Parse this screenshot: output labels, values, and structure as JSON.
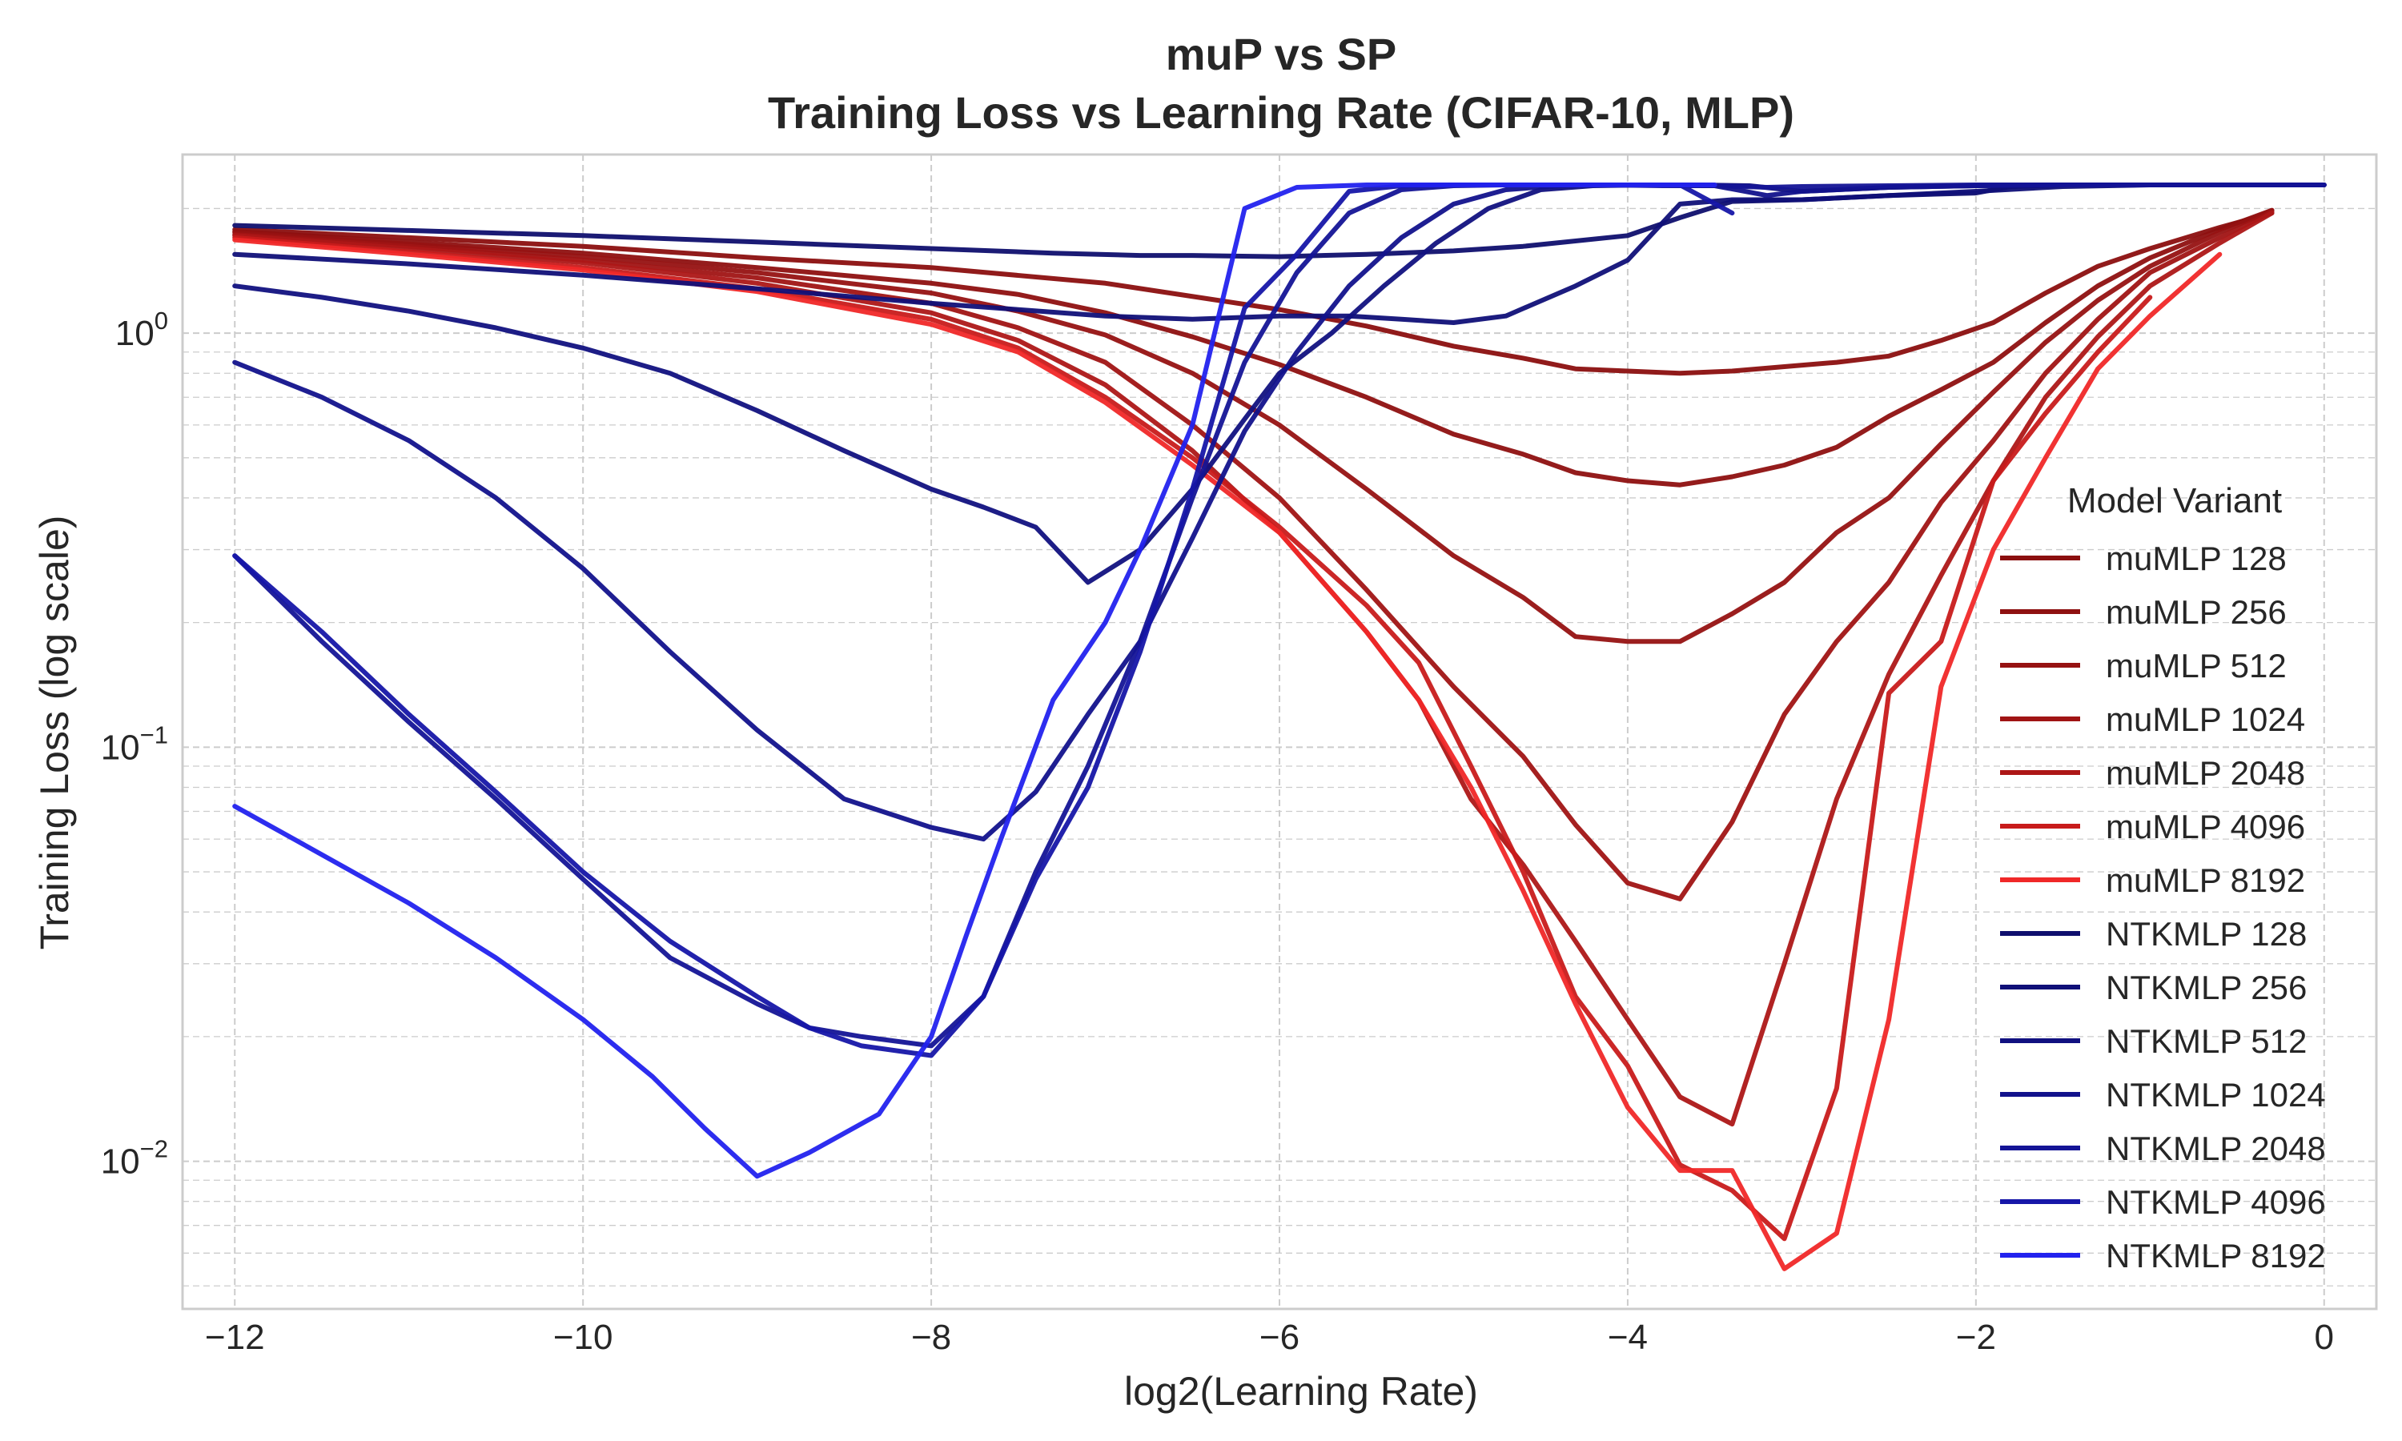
{
  "chart_data": {
    "type": "line",
    "title": "muP vs SP",
    "subtitle": "Training Loss vs Learning Rate (CIFAR-10, MLP)",
    "xlabel": "log2(Learning Rate)",
    "ylabel": "Training Loss (log scale)",
    "xlim": [
      -12.3,
      0.3
    ],
    "ylim": [
      0.0044,
      2.7
    ],
    "y_scale": "log",
    "grid": true,
    "x_ticks": [
      {
        "value": -12,
        "label": "−12"
      },
      {
        "value": -10,
        "label": "−10"
      },
      {
        "value": -8,
        "label": "−8"
      },
      {
        "value": -6,
        "label": "−6"
      },
      {
        "value": -4,
        "label": "−4"
      },
      {
        "value": -2,
        "label": "−2"
      },
      {
        "value": 0,
        "label": "0"
      }
    ],
    "y_ticks": [
      {
        "value": 0.01,
        "base": "10",
        "exp": "−2"
      },
      {
        "value": 0.1,
        "base": "10",
        "exp": "−1"
      },
      {
        "value": 1,
        "base": "10",
        "exp": "0"
      }
    ],
    "legend": {
      "title": "Model Variant",
      "position": "right"
    },
    "series": [
      {
        "name": "muMLP 128",
        "color": "#8b0f0f",
        "x": [
          -12,
          -11,
          -10,
          -9,
          -8,
          -7,
          -6,
          -5.5,
          -5,
          -4.6,
          -4.3,
          -4,
          -3.7,
          -3.4,
          -3.1,
          -2.8,
          -2.5,
          -2.2,
          -1.9,
          -1.6,
          -1.3,
          -1,
          -0.6,
          -0.3
        ],
        "y": [
          1.78,
          1.7,
          1.62,
          1.52,
          1.44,
          1.32,
          1.14,
          1.04,
          0.93,
          0.87,
          0.82,
          0.81,
          0.8,
          0.81,
          0.83,
          0.85,
          0.88,
          0.96,
          1.06,
          1.25,
          1.45,
          1.6,
          1.8,
          1.95
        ]
      },
      {
        "name": "muMLP 256",
        "color": "#8e1010",
        "x": [
          -12,
          -11,
          -10,
          -9,
          -8,
          -7.5,
          -7,
          -6.5,
          -6,
          -5.5,
          -5,
          -4.6,
          -4.3,
          -4,
          -3.7,
          -3.4,
          -3.1,
          -2.8,
          -2.5,
          -2.2,
          -1.9,
          -1.6,
          -1.3,
          -1,
          -0.6,
          -0.3
        ],
        "y": [
          1.76,
          1.66,
          1.56,
          1.44,
          1.32,
          1.24,
          1.12,
          0.98,
          0.84,
          0.7,
          0.57,
          0.51,
          0.46,
          0.44,
          0.43,
          0.45,
          0.48,
          0.53,
          0.63,
          0.73,
          0.85,
          1.06,
          1.3,
          1.52,
          1.78,
          1.98
        ]
      },
      {
        "name": "muMLP 512",
        "color": "#961212",
        "x": [
          -12,
          -11,
          -10,
          -9,
          -8,
          -7.5,
          -7,
          -6.5,
          -6,
          -5.5,
          -5,
          -4.6,
          -4.3,
          -4,
          -3.7,
          -3.4,
          -3.1,
          -2.8,
          -2.5,
          -2.2,
          -1.9,
          -1.6,
          -1.3,
          -1,
          -0.6,
          -0.3
        ],
        "y": [
          1.75,
          1.64,
          1.53,
          1.4,
          1.25,
          1.13,
          0.99,
          0.8,
          0.6,
          0.42,
          0.29,
          0.23,
          0.185,
          0.18,
          0.18,
          0.21,
          0.25,
          0.33,
          0.4,
          0.54,
          0.72,
          0.95,
          1.2,
          1.45,
          1.75,
          1.98
        ]
      },
      {
        "name": "muMLP 1024",
        "color": "#a01414",
        "x": [
          -12,
          -11,
          -10,
          -9,
          -8,
          -7.5,
          -7,
          -6.5,
          -6,
          -5.5,
          -5,
          -4.6,
          -4.3,
          -4,
          -3.7,
          -3.4,
          -3.1,
          -2.8,
          -2.5,
          -2.2,
          -1.9,
          -1.6,
          -1.3,
          -1,
          -0.6,
          -0.3
        ],
        "y": [
          1.73,
          1.62,
          1.5,
          1.36,
          1.18,
          1.03,
          0.85,
          0.6,
          0.4,
          0.24,
          0.14,
          0.095,
          0.065,
          0.047,
          0.043,
          0.066,
          0.12,
          0.18,
          0.25,
          0.39,
          0.55,
          0.8,
          1.08,
          1.4,
          1.7,
          1.96
        ]
      },
      {
        "name": "muMLP 2048",
        "color": "#ad1717",
        "x": [
          -12,
          -11,
          -10,
          -9,
          -8,
          -7.5,
          -7,
          -6.5,
          -6,
          -5.5,
          -5.2,
          -4.9,
          -4.6,
          -4.3,
          -4,
          -3.7,
          -3.4,
          -3.1,
          -2.8,
          -2.5,
          -2.2,
          -1.9,
          -1.6,
          -1.3,
          -1,
          -0.6,
          -0.3
        ],
        "y": [
          1.72,
          1.6,
          1.48,
          1.32,
          1.12,
          0.96,
          0.75,
          0.52,
          0.33,
          0.19,
          0.13,
          0.075,
          0.052,
          0.034,
          0.022,
          0.0143,
          0.0123,
          0.03,
          0.075,
          0.15,
          0.26,
          0.44,
          0.7,
          0.98,
          1.3,
          1.65,
          1.95
        ]
      },
      {
        "name": "muMLP 4096",
        "color": "#c81b1b",
        "x": [
          -12,
          -11,
          -10,
          -9,
          -8,
          -7.5,
          -7,
          -6.5,
          -6,
          -5.5,
          -5.2,
          -4.9,
          -4.6,
          -4.3,
          -4,
          -3.7,
          -3.4,
          -3.1,
          -2.8,
          -2.5,
          -2.2,
          -1.9,
          -1.6,
          -1.3,
          -1
        ],
        "y": [
          1.7,
          1.57,
          1.44,
          1.28,
          1.08,
          0.92,
          0.7,
          0.5,
          0.34,
          0.22,
          0.16,
          0.09,
          0.05,
          0.025,
          0.017,
          0.0098,
          0.0085,
          0.0065,
          0.015,
          0.135,
          0.18,
          0.44,
          0.64,
          0.9,
          1.22
        ]
      },
      {
        "name": "muMLP 8192",
        "color": "#f02828",
        "x": [
          -12,
          -11,
          -10,
          -9,
          -8,
          -7.5,
          -7,
          -6.5,
          -6,
          -5.5,
          -5.2,
          -4.9,
          -4.6,
          -4.3,
          -4,
          -3.7,
          -3.4,
          -3.1,
          -2.8,
          -2.5,
          -2.2,
          -1.9,
          -1.6,
          -1.3,
          -1,
          -0.6
        ],
        "y": [
          1.68,
          1.55,
          1.42,
          1.26,
          1.05,
          0.9,
          0.68,
          0.48,
          0.33,
          0.19,
          0.13,
          0.08,
          0.045,
          0.024,
          0.0135,
          0.0095,
          0.0095,
          0.0055,
          0.0067,
          0.022,
          0.14,
          0.3,
          0.5,
          0.82,
          1.1,
          1.55
        ]
      },
      {
        "name": "NTKMLP 128",
        "color": "#0f0f6e",
        "x": [
          -12,
          -11,
          -10,
          -9,
          -8,
          -7.3,
          -6.8,
          -6.5,
          -6,
          -5.5,
          -5,
          -4.6,
          -4,
          -3.7,
          -3.4,
          -3,
          -2.5,
          -2,
          -1.8,
          -1.5,
          -1,
          -0.5,
          0
        ],
        "y": [
          1.82,
          1.77,
          1.72,
          1.66,
          1.6,
          1.56,
          1.54,
          1.54,
          1.53,
          1.55,
          1.58,
          1.62,
          1.72,
          1.9,
          2.08,
          2.1,
          2.15,
          2.18,
          2.26,
          2.28,
          2.28,
          2.28,
          2.28
        ]
      },
      {
        "name": "NTKMLP 256",
        "color": "#101078",
        "x": [
          -12,
          -11,
          -10,
          -9,
          -8,
          -7.5,
          -7,
          -6.5,
          -6,
          -5.6,
          -5.3,
          -5,
          -4.7,
          -4.3,
          -4,
          -3.7,
          -3.4,
          -3,
          -2.5,
          -2,
          -1.5,
          -1,
          0
        ],
        "y": [
          1.55,
          1.47,
          1.38,
          1.28,
          1.18,
          1.14,
          1.1,
          1.08,
          1.1,
          1.1,
          1.08,
          1.06,
          1.1,
          1.3,
          1.5,
          2.05,
          2.1,
          2.1,
          2.15,
          2.2,
          2.26,
          2.28,
          2.28
        ]
      },
      {
        "name": "NTKMLP 512",
        "color": "#111180",
        "x": [
          -12,
          -11.5,
          -11,
          -10.5,
          -10,
          -9.5,
          -9,
          -8.5,
          -8,
          -7.7,
          -7.4,
          -7.1,
          -6.8,
          -6.5,
          -6.2,
          -6,
          -5.7,
          -5.4,
          -5.1,
          -4.8,
          -4.5,
          -4.2,
          -3.9,
          -3.6,
          -3.3,
          -3,
          -2.5,
          -2,
          -1.5,
          -1,
          0
        ],
        "y": [
          1.3,
          1.22,
          1.13,
          1.03,
          0.92,
          0.8,
          0.65,
          0.52,
          0.42,
          0.38,
          0.34,
          0.25,
          0.3,
          0.42,
          0.62,
          0.8,
          1.0,
          1.3,
          1.65,
          2.0,
          2.22,
          2.27,
          2.28,
          2.28,
          2.27,
          2.2,
          2.25,
          2.27,
          2.28,
          2.28,
          2.28
        ]
      },
      {
        "name": "NTKMLP 1024",
        "color": "#12128c",
        "x": [
          -12,
          -11.5,
          -11,
          -10.5,
          -10,
          -9.5,
          -9,
          -8.5,
          -8,
          -7.7,
          -7.4,
          -7.1,
          -6.8,
          -6.5,
          -6.2,
          -5.9,
          -5.6,
          -5.3,
          -5,
          -4.7,
          -4.4,
          -4.1,
          -3.8,
          -3.5,
          -3.2,
          -3,
          -2.5,
          -2,
          -1.5,
          -1,
          0
        ],
        "y": [
          0.85,
          0.7,
          0.55,
          0.4,
          0.27,
          0.17,
          0.11,
          0.075,
          0.064,
          0.06,
          0.078,
          0.12,
          0.18,
          0.32,
          0.58,
          0.9,
          1.3,
          1.7,
          2.05,
          2.22,
          2.27,
          2.28,
          2.28,
          2.27,
          2.15,
          2.2,
          2.25,
          2.27,
          2.28,
          2.28,
          2.28
        ]
      },
      {
        "name": "NTKMLP 2048",
        "color": "#141496",
        "x": [
          -12,
          -11.5,
          -11,
          -10.5,
          -10,
          -9.5,
          -9,
          -8.7,
          -8.4,
          -8,
          -7.7,
          -7.4,
          -7.1,
          -6.8,
          -6.5,
          -6.2,
          -5.9,
          -5.6,
          -5.3,
          -5,
          -4.7,
          -4.4,
          -4.1,
          -3.8,
          -3.5,
          -3.2,
          -3,
          -2.5,
          -2,
          -1.5,
          -1,
          0
        ],
        "y": [
          0.29,
          0.18,
          0.115,
          0.075,
          0.048,
          0.031,
          0.024,
          0.021,
          0.02,
          0.019,
          0.025,
          0.05,
          0.09,
          0.18,
          0.4,
          0.85,
          1.4,
          1.95,
          2.22,
          2.27,
          2.28,
          2.28,
          2.28,
          2.27,
          2.27,
          2.25,
          2.26,
          2.27,
          2.28,
          2.28,
          2.28,
          2.28
        ]
      },
      {
        "name": "NTKMLP 4096",
        "color": "#1616a8",
        "x": [
          -12,
          -11.5,
          -11,
          -10.5,
          -10,
          -9.5,
          -9,
          -8.7,
          -8.4,
          -8,
          -7.7,
          -7.4,
          -7.1,
          -6.8,
          -6.5,
          -6.2,
          -5.9,
          -5.6,
          -5.3,
          -5,
          -4.5,
          -4,
          -3.7,
          -3.4
        ],
        "y": [
          0.29,
          0.19,
          0.12,
          0.078,
          0.05,
          0.034,
          0.025,
          0.021,
          0.019,
          0.018,
          0.025,
          0.048,
          0.08,
          0.17,
          0.42,
          1.15,
          1.55,
          2.2,
          2.27,
          2.28,
          2.28,
          2.28,
          2.28,
          1.95
        ]
      },
      {
        "name": "NTKMLP 8192",
        "color": "#2222ee",
        "x": [
          -12,
          -11.5,
          -11,
          -10.5,
          -10,
          -9.6,
          -9.3,
          -9,
          -8.7,
          -8.3,
          -8,
          -7.8,
          -7.6,
          -7.3,
          -7,
          -6.8,
          -6.5,
          -6.2,
          -5.9,
          -5.5,
          -5,
          -4.5,
          -4,
          -3.5
        ],
        "y": [
          0.072,
          0.055,
          0.042,
          0.031,
          0.022,
          0.016,
          0.012,
          0.0092,
          0.0105,
          0.013,
          0.02,
          0.035,
          0.06,
          0.13,
          0.2,
          0.3,
          0.6,
          2.0,
          2.25,
          2.28,
          2.28,
          2.28,
          2.28,
          2.28
        ]
      }
    ]
  }
}
